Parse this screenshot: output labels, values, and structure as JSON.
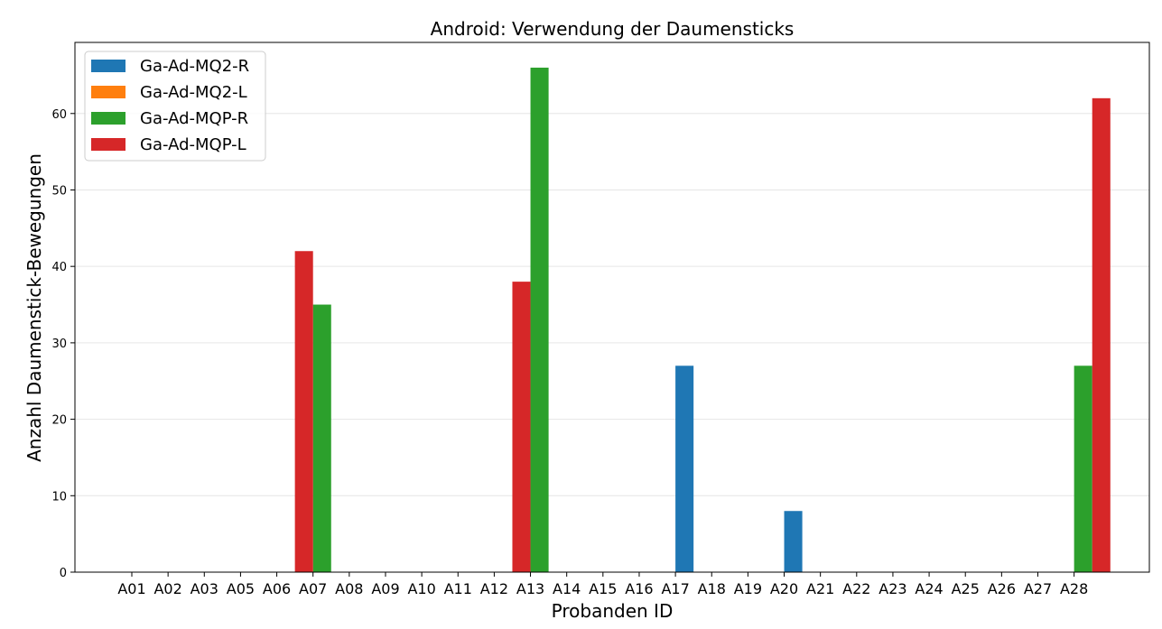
{
  "chart_data": {
    "type": "bar",
    "title": "Android: Verwendung der Daumensticks",
    "xlabel": "Probanden ID",
    "ylabel": "Anzahl Daumenstick-Bewegungen",
    "categories": [
      "A01",
      "A02",
      "A03",
      "A05",
      "A06",
      "A07",
      "A08",
      "A09",
      "A10",
      "A11",
      "A12",
      "A13",
      "A14",
      "A15",
      "A16",
      "A17",
      "A18",
      "A19",
      "A20",
      "A21",
      "A22",
      "A23",
      "A24",
      "A25",
      "A26",
      "A27",
      "A28"
    ],
    "ylim": [
      0,
      69.3
    ],
    "yticks": [
      0,
      10,
      20,
      30,
      40,
      50,
      60
    ],
    "grid": "y",
    "legend_position": "top-left",
    "series": [
      {
        "name": "Ga-Ad-MQ2-R",
        "color": "#1f77b4",
        "values": [
          0,
          0,
          0,
          0,
          0,
          0,
          0,
          0,
          0,
          0,
          0,
          0,
          0,
          0,
          0,
          0,
          27,
          0,
          0,
          8,
          0,
          0,
          0,
          0,
          0,
          0,
          0
        ]
      },
      {
        "name": "Ga-Ad-MQ2-L",
        "color": "#ff7f0e",
        "values": [
          0,
          0,
          0,
          0,
          0,
          0,
          0,
          0,
          0,
          0,
          0,
          0,
          0,
          0,
          0,
          0,
          0,
          0,
          0,
          0,
          0,
          0,
          0,
          0,
          0,
          0,
          0
        ]
      },
      {
        "name": "Ga-Ad-MQP-R",
        "color": "#2ca02c",
        "values": [
          0,
          0,
          0,
          0,
          0,
          35,
          0,
          0,
          0,
          0,
          0,
          66,
          0,
          0,
          0,
          0,
          0,
          0,
          0,
          0,
          0,
          0,
          0,
          0,
          0,
          0,
          27
        ]
      },
      {
        "name": "Ga-Ad-MQP-L",
        "color": "#d62728",
        "values": [
          0,
          0,
          0,
          0,
          42,
          0,
          0,
          0,
          0,
          0,
          38,
          0,
          0,
          0,
          0,
          0,
          0,
          0,
          0,
          0,
          0,
          0,
          0,
          0,
          0,
          0,
          62
        ]
      }
    ]
  }
}
